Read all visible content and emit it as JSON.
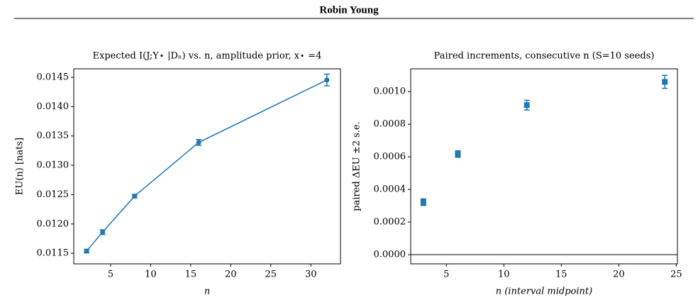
{
  "header": {
    "title": "Robin Young"
  },
  "chart_data": [
    {
      "type": "line",
      "title": "Expected I(J;Y⋆ |Dₙ) vs. n, amplitude prior, x⋆ =4",
      "xlabel": "n",
      "ylabel": "EU(n)  [nats]",
      "x": [
        2,
        4,
        8,
        16,
        32
      ],
      "series": [
        {
          "color": "#1f77b4",
          "marker": "circle",
          "values": [
            0.011538,
            0.011861,
            0.012475,
            0.01339,
            0.014455
          ],
          "errors": [
            3e-05,
            4e-05,
            3e-05,
            5e-05,
            0.0001
          ]
        }
      ],
      "xlim": [
        0.4,
        33.7
      ],
      "xticks": [
        5,
        10,
        15,
        20,
        25,
        30
      ],
      "ylim": [
        0.01132,
        0.014645
      ],
      "yticks": [
        {
          "value": 0.0115,
          "label": "0.0115"
        },
        {
          "value": 0.012,
          "label": "0.0120"
        },
        {
          "value": 0.0125,
          "label": "0.0125"
        },
        {
          "value": 0.013,
          "label": "0.0130"
        },
        {
          "value": 0.0135,
          "label": "0.0135"
        },
        {
          "value": 0.014,
          "label": "0.0140"
        },
        {
          "value": 0.0145,
          "label": "0.0145"
        }
      ]
    },
    {
      "type": "scatter",
      "title": "Paired increments, consecutive n  (S=10 seeds)",
      "xlabel": "n (interval midpoint)",
      "ylabel": "paired ΔEU  ±2 s.e.",
      "x": [
        3,
        6,
        12,
        24
      ],
      "series": [
        {
          "color": "#1f77b4",
          "marker": "square",
          "values": [
            0.000322,
            0.000617,
            0.000917,
            0.00106
          ],
          "errors": [
            2e-05,
            2e-05,
            3e-05,
            4e-05
          ]
        }
      ],
      "hline": 0,
      "xlim": [
        1.9,
        25.1
      ],
      "xticks": [
        5,
        10,
        15,
        20,
        25
      ],
      "ylim": [
        -5.65e-05,
        0.00114
      ],
      "yticks": [
        {
          "value": 0,
          "label": "0.0000"
        },
        {
          "value": 0.0002,
          "label": "0.0002"
        },
        {
          "value": 0.0004,
          "label": "0.0004"
        },
        {
          "value": 0.0006,
          "label": "0.0006"
        },
        {
          "value": 0.0008,
          "label": "0.0008"
        },
        {
          "value": 0.001,
          "label": "0.0010"
        }
      ]
    }
  ]
}
